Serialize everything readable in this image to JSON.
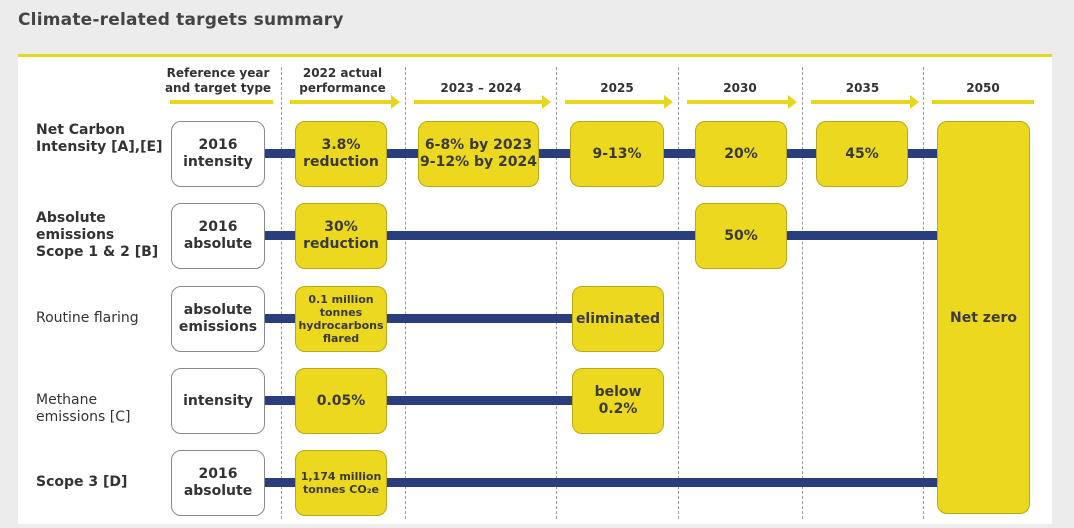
{
  "title": "Climate-related targets summary",
  "colors": {
    "accent_yellow": "#ecd81f",
    "bar_blue": "#2a3e7e"
  },
  "columns": [
    {
      "id": "ref",
      "label_line1": "Reference year",
      "label_line2": "and target type"
    },
    {
      "id": "actual",
      "label_line1": "2022 actual",
      "label_line2": "performance"
    },
    {
      "id": "y2023",
      "label": "2023 – 2024"
    },
    {
      "id": "y2025",
      "label": "2025"
    },
    {
      "id": "y2030",
      "label": "2030"
    },
    {
      "id": "y2035",
      "label": "2035"
    },
    {
      "id": "y2050",
      "label": "2050"
    }
  ],
  "rows": [
    {
      "label_line1": "Net Carbon",
      "label_line2": "Intensity [A],[E]",
      "reference_line1": "2016",
      "reference_line2": "intensity",
      "actual_line1": "3.8%",
      "actual_line2": "reduction",
      "t2023_line1": "6-8% by 2023",
      "t2023_line2": "9-12% by 2024",
      "t2025": "9-13%",
      "t2030": "20%",
      "t2035": "45%"
    },
    {
      "label_line1": "Absolute",
      "label_line2": "emissions",
      "label_line3": "Scope 1 & 2 [B]",
      "reference_line1": "2016",
      "reference_line2": "absolute",
      "actual_line1": "30%",
      "actual_line2": "reduction",
      "t2030": "50%"
    },
    {
      "label_line1": "Routine flaring",
      "reference_line1": "absolute",
      "reference_line2": "emissions",
      "actual_line1": "0.1 million",
      "actual_line2": "tonnes",
      "actual_line3": "hydrocarbons",
      "actual_line4": "flared",
      "t2025": "eliminated"
    },
    {
      "label_line1": "Methane",
      "label_line2": "emissions [C]",
      "reference_line1": "intensity",
      "actual_line1": "0.05%",
      "t2025_line1": "below",
      "t2025_line2": "0.2%"
    },
    {
      "label_line1": "Scope 3 [D]",
      "reference_line1": "2016",
      "reference_line2": "absolute",
      "actual_line1": "1,174 million",
      "actual_line2": "tonnes CO₂e"
    }
  ],
  "t2050": "Net zero"
}
